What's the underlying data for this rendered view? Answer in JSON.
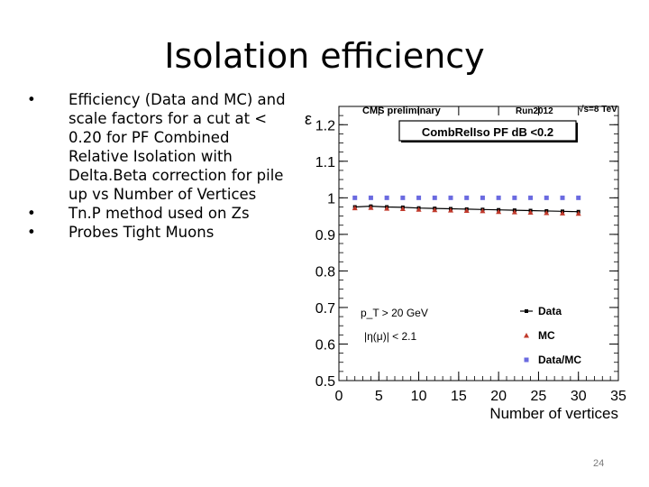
{
  "slide": {
    "title": "Isolation efficiency",
    "bullets": [
      "Efficiency (Data and MC) and scale factors for a cut at < 0.20 for PF Combined Relative Isolation with Delta.Beta correction for pile up vs Number of Vertices",
      "Tn.P method used on Zs",
      "Probes Tight Muons"
    ],
    "bullet_glyph": "•",
    "page_number": "24"
  },
  "chart_data": {
    "type": "scatter",
    "header_left": "CMS preliminary",
    "header_mid": "Run2012",
    "header_right": "√s=8 TeV",
    "title": "CombRelIso PF dB <0.2",
    "xlabel": "Number of vertices",
    "ylabel": "ε",
    "xlim": [
      0,
      35
    ],
    "ylim": [
      0.5,
      1.25
    ],
    "xticks": [
      0,
      5,
      10,
      15,
      20,
      25,
      30,
      35
    ],
    "yticks": [
      0.5,
      0.6,
      0.7,
      0.8,
      0.9,
      1.0,
      1.1,
      1.2
    ],
    "ytick_labels": [
      "0.5",
      "0.6",
      "0.7",
      "0.8",
      "0.9",
      "1",
      "1.1",
      "1.2"
    ],
    "annotations": [
      "p_T > 20 GeV",
      "|η(μ)| < 2.1"
    ],
    "legend": [
      "Data",
      "MC",
      "Data/MC"
    ],
    "series": [
      {
        "name": "Data",
        "marker": "square-line",
        "color": "#000000",
        "x": [
          2,
          4,
          6,
          8,
          10,
          12,
          14,
          16,
          18,
          20,
          22,
          24,
          26,
          28,
          30
        ],
        "y": [
          0.975,
          0.977,
          0.975,
          0.974,
          0.972,
          0.971,
          0.97,
          0.969,
          0.968,
          0.967,
          0.966,
          0.965,
          0.964,
          0.963,
          0.962
        ]
      },
      {
        "name": "MC",
        "marker": "triangle",
        "color": "#c0392b",
        "x": [
          2,
          4,
          6,
          8,
          10,
          12,
          14,
          16,
          18,
          20,
          22,
          24,
          26,
          28,
          30
        ],
        "y": [
          0.972,
          0.973,
          0.971,
          0.97,
          0.968,
          0.967,
          0.966,
          0.965,
          0.964,
          0.962,
          0.961,
          0.96,
          0.959,
          0.958,
          0.957
        ]
      },
      {
        "name": "Data/MC",
        "marker": "square",
        "color": "#6a6ae0",
        "x": [
          2,
          4,
          6,
          8,
          10,
          12,
          14,
          16,
          18,
          20,
          22,
          24,
          26,
          28,
          30
        ],
        "y": [
          1.0,
          1.0,
          1.0,
          1.0,
          1.0,
          1.0,
          1.0,
          1.0,
          1.0,
          1.0,
          1.0,
          1.0,
          1.0,
          1.0,
          1.0
        ]
      }
    ]
  }
}
